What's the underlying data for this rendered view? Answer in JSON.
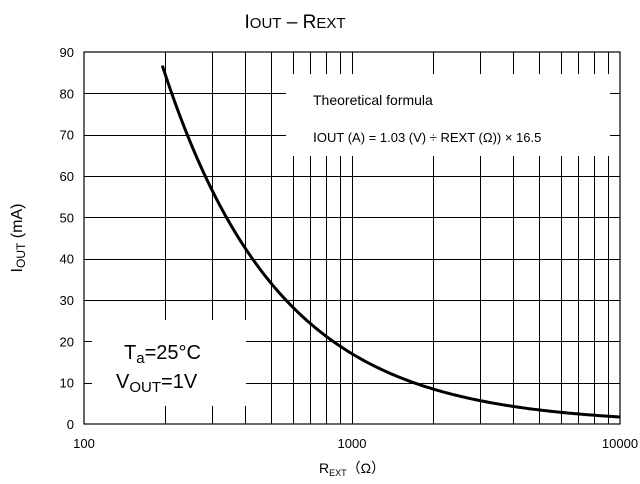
{
  "chart_data": {
    "type": "line",
    "title": "IOUT – REXT",
    "title_parts": {
      "i_main": "I",
      "i_sub": "OUT",
      "sep": " – R",
      "r_sub": "EXT"
    },
    "ylabel_parts": {
      "main": "I",
      "sub": "OUT",
      "rest": " (mA)"
    },
    "xlabel_parts": {
      "main": "R",
      "sub": "EXT",
      "rest": "（Ω）"
    },
    "x_scale": "log",
    "xlim": [
      100,
      10000
    ],
    "ylim": [
      0,
      90
    ],
    "x_ticks": [
      {
        "value": 100,
        "label": "100"
      },
      {
        "value": 1000,
        "label": "1000"
      },
      {
        "value": 10000,
        "label": "10000"
      }
    ],
    "y_ticks": [
      0,
      10,
      20,
      30,
      40,
      50,
      60,
      70,
      80,
      90
    ],
    "grid": true,
    "series": [
      {
        "formula": {
          "constant": 1.03,
          "multiplier": 16.5
        },
        "x_start": 196,
        "x_end": 10000
      }
    ],
    "annotations": {
      "formula_box": {
        "line1": "Theoretical formula",
        "line2_parts": [
          "I",
          "OUT",
          " (A) = 1.03 (V) ÷ R",
          "EXT",
          " (Ω)) × 16.5"
        ]
      },
      "conditions_box": {
        "ta_parts": [
          "T",
          "a",
          "=25°C"
        ],
        "vout_parts": [
          "V",
          "OUT",
          "=1V"
        ]
      }
    },
    "color": "#000000"
  }
}
